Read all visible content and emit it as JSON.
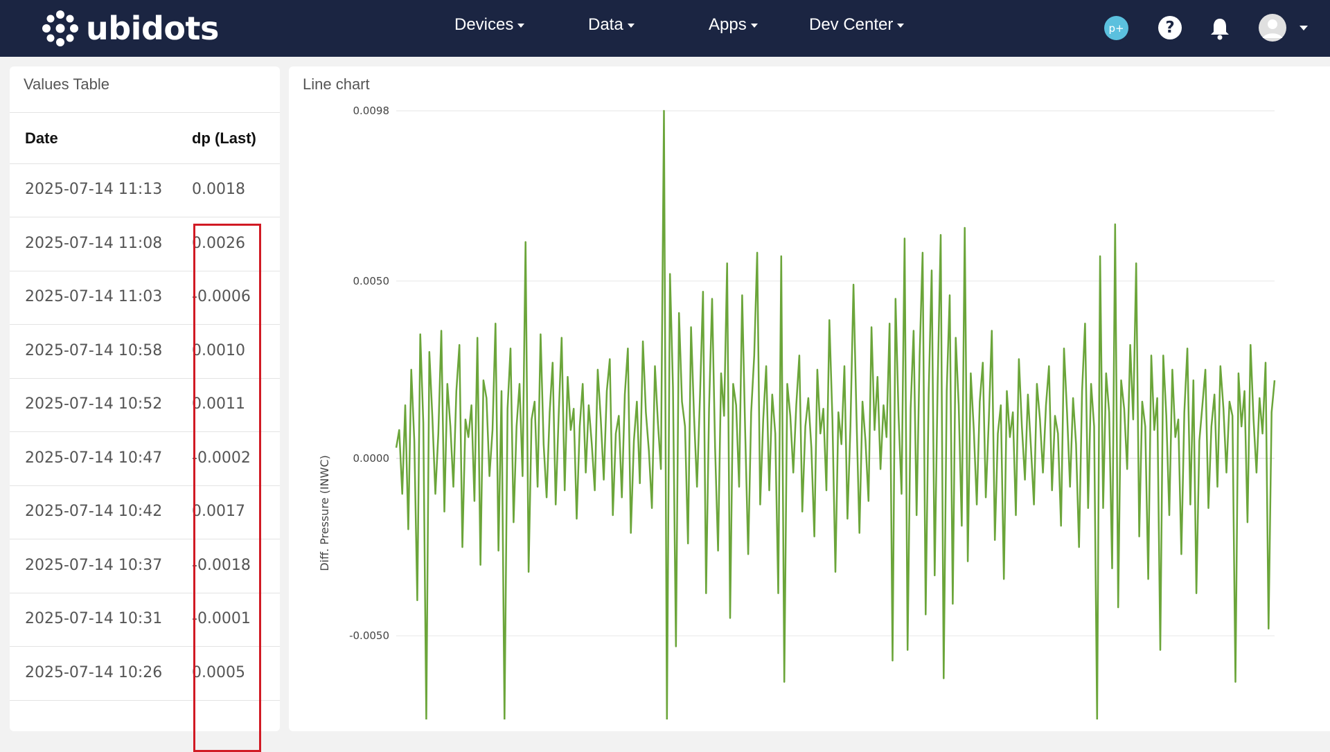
{
  "brand": {
    "name": "ubidots"
  },
  "nav": {
    "devices": "Devices",
    "data": "Data",
    "apps": "Apps",
    "dev_center": "Dev Center"
  },
  "header_icons": {
    "plan_badge": "p+",
    "help": "?"
  },
  "values_table": {
    "title": "Values Table",
    "columns": [
      "Date",
      "dp (Last)"
    ],
    "rows": [
      {
        "date": "2025-07-14 11:13",
        "value": "0.0018"
      },
      {
        "date": "2025-07-14 11:08",
        "value": "0.0026"
      },
      {
        "date": "2025-07-14 11:03",
        "value": "-0.0006"
      },
      {
        "date": "2025-07-14 10:58",
        "value": "0.0010"
      },
      {
        "date": "2025-07-14 10:52",
        "value": "0.0011"
      },
      {
        "date": "2025-07-14 10:47",
        "value": "-0.0002"
      },
      {
        "date": "2025-07-14 10:42",
        "value": "0.0017"
      },
      {
        "date": "2025-07-14 10:37",
        "value": "-0.0018"
      },
      {
        "date": "2025-07-14 10:31",
        "value": "-0.0001"
      },
      {
        "date": "2025-07-14 10:26",
        "value": "0.0005"
      }
    ]
  },
  "colors": {
    "navbar": "#1b2542",
    "line": "#6ba53a",
    "highlight": "#d11a24",
    "badge": "#5bc0de"
  },
  "chart_data": {
    "type": "line",
    "title": "Line chart",
    "ylabel": "Diff. Pressure (INWC)",
    "xlabel": "",
    "y_ticks": [
      "0.0098",
      "0.0050",
      "0.0000",
      "-0.0050"
    ],
    "y_tick_values": [
      0.0098,
      0.005,
      0.0,
      -0.005
    ],
    "ylim": [
      -0.0075,
      0.0098
    ],
    "grid": true,
    "series": [
      {
        "values": [
          0.0003,
          0.0008,
          -0.001,
          0.0015,
          -0.002,
          0.0025,
          0.0005,
          -0.004,
          0.0035,
          0.001,
          -0.0075,
          0.003,
          0.0012,
          -0.001,
          0.0007,
          0.0036,
          -0.0015,
          0.0021,
          0.0009,
          -0.0008,
          0.0019,
          0.0032,
          -0.0025,
          0.0011,
          0.0006,
          0.0015,
          -0.0012,
          0.0034,
          -0.003,
          0.0022,
          0.0017,
          -0.0005,
          0.0008,
          0.0038,
          -0.0026,
          0.0019,
          -0.0075,
          0.0014,
          0.0031,
          -0.0018,
          0.0009,
          0.0021,
          -0.0005,
          0.0061,
          -0.0032,
          0.0011,
          0.0016,
          -0.0008,
          0.0035,
          0.0004,
          -0.0011,
          0.0013,
          0.0027,
          -0.0013,
          0.0012,
          0.0034,
          -0.0009,
          0.0023,
          0.0008,
          0.0014,
          -0.0017,
          0.0009,
          0.0021,
          -0.0004,
          0.0015,
          0.0004,
          -0.0009,
          0.0025,
          0.0011,
          -0.0006,
          0.0019,
          0.0028,
          -0.0016,
          0.0007,
          0.0012,
          -0.0011,
          0.0018,
          0.0031,
          -0.0021,
          0.0005,
          0.0016,
          -0.0007,
          0.0033,
          0.0013,
          0.0002,
          -0.0014,
          0.0026,
          0.001,
          -0.0003,
          0.0098,
          -0.0075,
          0.0052,
          0.002,
          -0.0053,
          0.0041,
          0.0016,
          0.0009,
          -0.0024,
          0.0037,
          0.0012,
          -0.0008,
          0.0018,
          0.0047,
          -0.0038,
          0.0014,
          0.0045,
          0.0003,
          -0.0026,
          0.0024,
          0.0012,
          0.0055,
          -0.0045,
          0.0021,
          0.0015,
          -0.0008,
          0.0046,
          0.0008,
          -0.0027,
          0.0013,
          0.0029,
          0.0058,
          -0.0013,
          0.0011,
          0.0026,
          -0.0009,
          0.0018,
          0.0007,
          -0.0038,
          0.0057,
          -0.0063,
          0.0021,
          0.0012,
          -0.0004,
          0.0015,
          0.0029,
          -0.0015,
          0.0009,
          0.0017,
          0.0003,
          -0.0022,
          0.0025,
          0.0007,
          0.0014,
          -0.0009,
          0.0039,
          0.0011,
          -0.0032,
          0.0013,
          0.0004,
          0.0026,
          -0.0017,
          0.0009,
          0.0049,
          0.0012,
          -0.0021,
          0.0016,
          0.0005,
          -0.0012,
          0.0037,
          0.0008,
          0.0023,
          -0.0003,
          0.0015,
          0.0006,
          0.0038,
          -0.0057,
          0.0045,
          0.0012,
          -0.001,
          0.0062,
          -0.0054,
          0.0014,
          0.0036,
          -0.0016,
          0.0029,
          0.0058,
          -0.0044,
          0.0018,
          0.0053,
          -0.0033,
          0.0021,
          0.0063,
          -0.0062,
          0.0019,
          0.0046,
          -0.0041,
          0.0034,
          0.0015,
          -0.0019,
          0.0065,
          -0.0029,
          0.0024,
          0.0008,
          -0.0013,
          0.0016,
          0.0027,
          -0.0011,
          0.0011,
          0.0036,
          -0.0023,
          0.0007,
          0.0015,
          -0.0034,
          0.0019,
          0.0006,
          0.0013,
          -0.0016,
          0.0028,
          0.0009,
          -0.0006,
          0.0018,
          0.0003,
          -0.0013,
          0.0021,
          0.0011,
          -0.0004,
          0.0015,
          0.0026,
          -0.0009,
          0.0012,
          0.0007,
          -0.0019,
          0.0031,
          0.0013,
          -0.0008,
          0.0017,
          0.0004,
          -0.0025,
          0.0019,
          0.0038,
          -0.0014,
          0.0021,
          0.0009,
          -0.0075,
          0.0057,
          -0.0014,
          0.0024,
          0.0013,
          -0.0031,
          0.0066,
          -0.0042,
          0.0022,
          0.0014,
          -0.0003,
          0.0032,
          0.0011,
          0.0055,
          -0.0022,
          0.0016,
          0.0009,
          -0.0034,
          0.0029,
          0.0008,
          0.0017,
          -0.0054,
          0.0029,
          0.0012,
          -0.0016,
          0.0025,
          0.0006,
          0.0011,
          -0.0027,
          0.0013,
          0.0031,
          -0.0013,
          0.0022,
          -0.0038,
          0.0005,
          0.0015,
          0.0025,
          -0.0014,
          0.0009,
          0.0018,
          -0.0008,
          0.0026,
          0.0014,
          -0.0004,
          0.0016,
          0.0012,
          -0.0063,
          0.0024,
          0.0009,
          0.0019,
          -0.0018,
          0.0032,
          0.0011,
          -0.0004,
          0.0017,
          0.0007,
          0.0027,
          -0.0048,
          0.0013,
          0.0022
        ]
      }
    ]
  }
}
